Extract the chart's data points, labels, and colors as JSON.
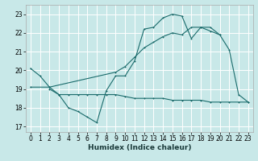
{
  "xlabel": "Humidex (Indice chaleur)",
  "bg_color": "#c8e8e8",
  "grid_color": "#ffffff",
  "line_color": "#1a6b6b",
  "xlim": [
    -0.5,
    23.5
  ],
  "ylim": [
    16.7,
    23.5
  ],
  "xticks": [
    0,
    1,
    2,
    3,
    4,
    5,
    6,
    7,
    8,
    9,
    10,
    11,
    12,
    13,
    14,
    15,
    16,
    17,
    18,
    19,
    20,
    21,
    22,
    23
  ],
  "yticks": [
    17,
    18,
    19,
    20,
    21,
    22,
    23
  ],
  "line1_x": [
    0,
    1,
    2,
    3,
    4,
    5,
    6,
    7,
    8,
    9,
    10,
    11,
    12,
    13,
    14,
    15,
    16,
    17,
    18,
    19,
    20,
    21,
    22,
    23
  ],
  "line1_y": [
    20.1,
    19.7,
    19.1,
    18.7,
    18.0,
    17.8,
    17.5,
    17.2,
    18.9,
    19.7,
    19.7,
    20.5,
    22.2,
    22.3,
    22.8,
    23.0,
    22.9,
    21.7,
    22.3,
    22.3,
    21.9,
    21.1,
    18.7,
    18.3
  ],
  "line2_x": [
    0,
    2,
    9,
    10,
    11,
    12,
    13,
    14,
    15,
    16,
    17,
    18,
    19,
    20
  ],
  "line2_y": [
    19.1,
    19.1,
    19.9,
    20.2,
    20.7,
    21.2,
    21.5,
    21.8,
    22.0,
    21.9,
    22.3,
    22.3,
    22.1,
    21.9
  ],
  "line3_x": [
    2,
    3,
    4,
    5,
    6,
    7,
    8,
    9,
    10,
    11,
    12,
    13,
    14,
    15,
    16,
    17,
    18,
    19,
    20,
    21,
    22,
    23
  ],
  "line3_y": [
    19.0,
    18.7,
    18.7,
    18.7,
    18.7,
    18.7,
    18.7,
    18.7,
    18.6,
    18.5,
    18.5,
    18.5,
    18.5,
    18.4,
    18.4,
    18.4,
    18.4,
    18.3,
    18.3,
    18.3,
    18.3,
    18.3
  ]
}
